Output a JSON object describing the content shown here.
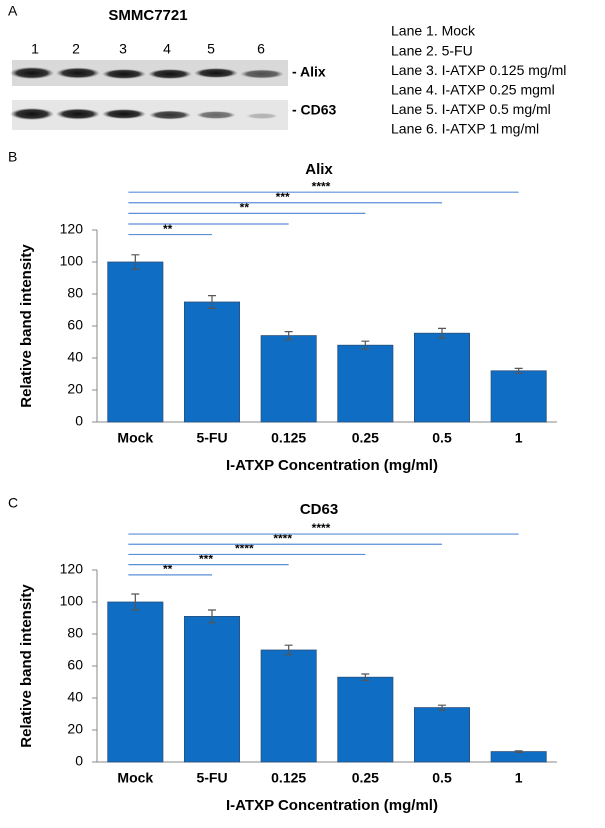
{
  "panel_a": {
    "label": "A",
    "title": "SMMC7721",
    "lanes": [
      "1",
      "2",
      "3",
      "4",
      "5",
      "6"
    ],
    "bands": [
      "- Alix",
      "- CD63"
    ],
    "legend": [
      "Lane 1. Mock",
      "Lane 2. 5-FU",
      "Lane 3. I-ATXP 0.125 mg/ml",
      "Lane 4. I-ATXP 0.25 mgml",
      "Lane 5. I-ATXP 0.5 mg/ml",
      "Lane 6. I-ATXP 1 mg/ml"
    ]
  },
  "chart_data": [
    {
      "type": "bar",
      "panel_label": "B",
      "title": "Alix",
      "x_label": "I-ATXP Concentration (mg/ml)",
      "y_label": "Relative band intensity",
      "categories": [
        "Mock",
        "5-FU",
        "0.125",
        "0.25",
        "0.5",
        "1"
      ],
      "values": [
        100,
        75,
        54,
        48,
        55.5,
        32
      ],
      "errors": [
        4.5,
        4,
        2.5,
        2.5,
        3,
        1.5
      ],
      "color": "#0f6ec4",
      "bracket_color": "#5b8fd8",
      "brackets": [
        {
          "end_index": 1,
          "label": "**"
        },
        {
          "end_index": 2
        },
        {
          "end_index": 3,
          "label": "**"
        },
        {
          "end_index": 4,
          "label": "***"
        },
        {
          "end_index": 5,
          "label": "****"
        }
      ],
      "ylim": [
        0,
        120
      ],
      "yticks": [
        0,
        20,
        40,
        60,
        80,
        100,
        120
      ]
    },
    {
      "type": "bar",
      "panel_label": "C",
      "title": "CD63",
      "x_label": "I-ATXP Concentration (mg/ml)",
      "y_label": "Relative band intensity",
      "categories": [
        "Mock",
        "5-FU",
        "0.125",
        "0.25",
        "0.5",
        "1"
      ],
      "values": [
        100,
        91,
        70,
        53,
        34,
        6.5
      ],
      "errors": [
        5,
        4,
        3,
        2,
        1.5,
        0.5
      ],
      "color": "#0f6ec4",
      "bracket_color": "#5b8fd8",
      "brackets": [
        {
          "end_index": 1,
          "label": "**"
        },
        {
          "end_index": 2,
          "label": "***"
        },
        {
          "end_index": 3,
          "label": "****"
        },
        {
          "end_index": 4,
          "label": "****"
        },
        {
          "end_index": 5,
          "label": "****"
        }
      ],
      "ylim": [
        0,
        120
      ],
      "yticks": [
        0,
        20,
        40,
        60,
        80,
        100,
        120
      ]
    }
  ]
}
